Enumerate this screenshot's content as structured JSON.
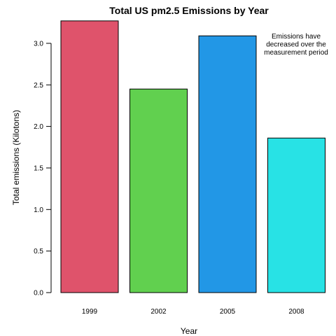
{
  "chart_data": {
    "type": "bar",
    "title": "Total US pm2.5 Emissions by Year",
    "xlabel": "Year",
    "ylabel": "Total emissions (Kilotons)",
    "categories": [
      "1999",
      "2002",
      "2005",
      "2008"
    ],
    "values": [
      3.27,
      2.45,
      3.09,
      1.86
    ],
    "colors": [
      "#DF536B",
      "#61D04F",
      "#2297E6",
      "#28E2E5"
    ],
    "ylim": [
      0,
      3.3
    ],
    "yticks": [
      "0.0",
      "0.5",
      "1.0",
      "1.5",
      "2.0",
      "2.5",
      "3.0"
    ],
    "ytick_values": [
      0,
      0.5,
      1.0,
      1.5,
      2.0,
      2.5,
      3.0
    ],
    "grid": false,
    "annotation": {
      "lines": [
        "Emissions have",
        "decreased over the",
        "measurement period"
      ]
    }
  }
}
